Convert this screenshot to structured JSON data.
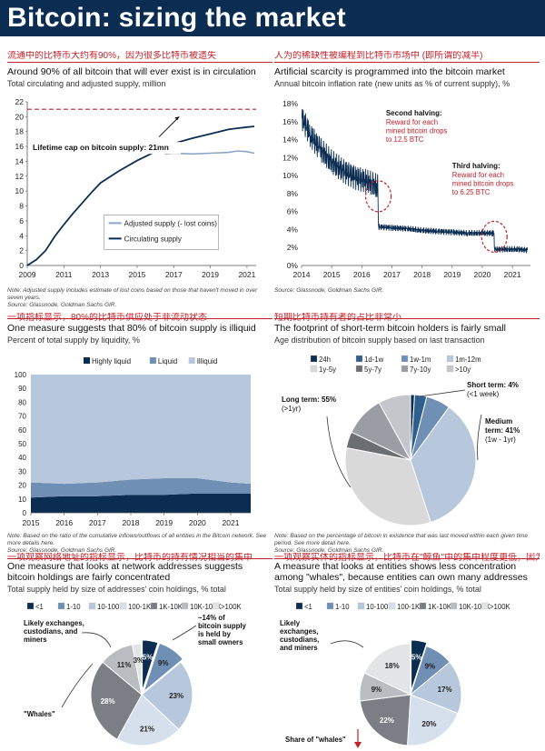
{
  "page": {
    "title": "Bitcoin: sizing the market"
  },
  "colors": {
    "navy": "#0c2d52",
    "red": "#c2222b",
    "mid": "#6f8fb5",
    "light": "#b7c8dc",
    "grey": "#8a8f96"
  },
  "panels": {
    "p1": {
      "cn": "流通中的比特币大约有90%，因为很多比特币被遗失",
      "head": "Around 90% of all bitcoin that will ever exist is in circulation",
      "sub": "Total circulating and adjusted supply, million",
      "annotation": "Lifetime cap on bitcoin supply: 21mn",
      "note": "Note: Adjusted supply includes estimate of lost coins based on those that haven't moved in over seven years.",
      "source": "Source: Glassnode, Goldman Sachs GIR."
    },
    "p2": {
      "cn": "人为的稀缺性被编程到比特币市场中 (即所谓的减半)",
      "head": "Artificial scarcity is programmed into the bitcoin market",
      "sub": "Annual bitcoin inflation rate (new units as % of current supply), %",
      "ann1_title": "Second halving:",
      "ann1_body": [
        "Reward for each",
        "mined bitcoin drops",
        "to 12.5 BTC"
      ],
      "ann2_title": "Third halving:",
      "ann2_body": [
        "Reward for each",
        "mined bitcoin drops",
        "to 6.25 BTC"
      ],
      "source": "Source: Glassnode, Goldman Sachs GIR."
    },
    "p3": {
      "cn": "一项指标显示，80%的比特币供应处于非流动状态",
      "head": "One measure suggests that 80% of bitcoin supply is illiquid",
      "sub": "Percent of total supply by liquidity, %",
      "note": "Note: Based on the ratio of the cumulative inflows/outflows of all entities in the Bitcoin network. See more details here.",
      "source": "Source: Glassnode, Goldman Sachs GIR."
    },
    "p4": {
      "cn": "短期比特币持有者的占比非常小",
      "head": "The footprint of short-term bitcoin holders is fairly small",
      "sub": "Age distribution of bitcoin supply based on last transaction",
      "long_term": "Long term: 55%",
      "long_term2": "(>1yr)",
      "short_term": "Short term: 4%",
      "short_term2": "(<1 week)",
      "medium_term": "Medium",
      "medium_term2": "term: 41%",
      "medium_term3": "(1w - 1yr)",
      "note": "Note: Based on the percentage of bitcoin in existence that was last moved within each given time period. See more detail here.",
      "source": "Source: Glassnode, Goldman Sachs GIR."
    },
    "p5": {
      "cn": "一项观察网络地址的指标显示，比特币的持有情况相当的集中",
      "head": [
        "One measure that looks at network addresses suggests",
        "bitcoin holdings are fairly concentrated"
      ],
      "sub": "Total supply held by size of addresses' coin holdings, % total",
      "ann_exchanges": [
        "Likely exchanges,",
        "custodians, and",
        "miners"
      ],
      "ann_small": [
        "~14% of",
        "bitcoin supply",
        "is held by",
        "small owners"
      ],
      "ann_whales": "\"Whales\""
    },
    "p6": {
      "cn": "一项观察实体的指标显示，比特币在\"鲸鱼\"中的集中程度更低，因为这些实体可能拥有许多个地址",
      "head": [
        "A measure that looks at entities shows less concentration",
        "among \"whales\", because entities can own many addresses"
      ],
      "sub": "Total supply held by size of entities' coin holdings, % total",
      "ann_exchanges": [
        "Likely",
        "exchanges,",
        "custodians,",
        "and miners"
      ],
      "ann_whales": "Share of \"whales\""
    }
  },
  "chart_data": [
    {
      "id": "supply",
      "type": "line",
      "title": "Total circulating and adjusted supply, million",
      "xlim": [
        2009,
        2021.5
      ],
      "ylim": [
        0,
        22
      ],
      "x_ticks": [
        "2009",
        "2011",
        "2013",
        "2015",
        "2017",
        "2019",
        "2021"
      ],
      "y_ticks": [
        "0",
        "2",
        "4",
        "6",
        "8",
        "10",
        "12",
        "14",
        "16",
        "18",
        "20",
        "22"
      ],
      "reference_line": {
        "value": 21,
        "label": "Lifetime cap on bitcoin supply: 21mn"
      },
      "series": [
        {
          "name": "Circulating supply",
          "x": [
            2009,
            2009.5,
            2010,
            2010.5,
            2011,
            2011.5,
            2012,
            2012.5,
            2013,
            2014,
            2015,
            2016,
            2016.5,
            2017,
            2018,
            2019,
            2020,
            2020.5,
            2021,
            2021.4
          ],
          "y": [
            0,
            0.8,
            2.0,
            3.9,
            5.5,
            7.0,
            8.4,
            9.8,
            11.1,
            12.7,
            14.1,
            15.3,
            15.8,
            16.4,
            17.1,
            17.7,
            18.3,
            18.45,
            18.6,
            18.7
          ]
        },
        {
          "name": "Adjusted supply (- lost coins)",
          "x": [
            2016.5,
            2017,
            2018,
            2019,
            2020,
            2020.5,
            2021,
            2021.4
          ],
          "y": [
            15.0,
            15.1,
            15.0,
            15.1,
            15.2,
            15.4,
            15.3,
            15.1
          ]
        }
      ]
    },
    {
      "id": "inflation",
      "type": "line",
      "title": "Annual bitcoin inflation rate (new units as % of current supply), %",
      "xlim": [
        2014,
        2021.6
      ],
      "ylim": [
        0,
        18
      ],
      "x_ticks": [
        "2014",
        "2015",
        "2016",
        "2017",
        "2018",
        "2019",
        "2020",
        "2021"
      ],
      "y_ticks": [
        "0%",
        "2%",
        "4%",
        "6%",
        "8%",
        "10%",
        "12%",
        "14%",
        "16%",
        "18%"
      ],
      "series": [
        {
          "name": "Inflation rate",
          "x": [
            2014.0,
            2014.3,
            2014.6,
            2015.0,
            2015.4,
            2015.8,
            2016.2,
            2016.5,
            2016.55,
            2017.0,
            2017.5,
            2018.0,
            2018.5,
            2019.0,
            2019.5,
            2020.0,
            2020.35,
            2020.4,
            2020.8,
            2021.2,
            2021.5
          ],
          "y": [
            16.5,
            14.5,
            13.0,
            11.5,
            10.5,
            9.8,
            9.3,
            8.8,
            4.3,
            4.2,
            4.1,
            3.9,
            3.8,
            3.7,
            3.6,
            3.6,
            3.6,
            1.8,
            1.8,
            1.8,
            1.7
          ]
        }
      ]
    },
    {
      "id": "liquidity",
      "type": "area",
      "title": "Percent of total supply by liquidity, %",
      "xlim": [
        2015,
        2021.6
      ],
      "ylim": [
        0,
        100
      ],
      "x_ticks": [
        "2015",
        "2016",
        "2017",
        "2018",
        "2019",
        "2020",
        "2021"
      ],
      "y_ticks": [
        "0",
        "10",
        "20",
        "30",
        "40",
        "50",
        "60",
        "70",
        "80",
        "90",
        "100"
      ],
      "legend_placement": "top",
      "series": [
        {
          "name": "Highly liquid",
          "x": [
            2015,
            2016,
            2017,
            2018,
            2019,
            2020,
            2021,
            2021.6
          ],
          "y": [
            11,
            12,
            12,
            13,
            13,
            14,
            14,
            14
          ]
        },
        {
          "name": "Liquid",
          "x": [
            2015,
            2016,
            2017,
            2018,
            2019,
            2020,
            2021,
            2021.6
          ],
          "y": [
            11,
            9,
            10,
            11,
            12,
            11,
            8,
            7
          ]
        },
        {
          "name": "Illiquid",
          "x": [
            2015,
            2016,
            2017,
            2018,
            2019,
            2020,
            2021,
            2021.6
          ],
          "y": [
            78,
            79,
            78,
            76,
            75,
            75,
            78,
            79
          ]
        }
      ]
    },
    {
      "id": "age",
      "type": "pie",
      "title": "Age distribution of bitcoin supply based on last transaction",
      "series": [
        {
          "name": "24h",
          "value": 1,
          "color": "#0c2d52"
        },
        {
          "name": "1d-1w",
          "value": 3,
          "color": "#2f5f8f"
        },
        {
          "name": "1w-1m",
          "value": 6,
          "color": "#6f8fb5"
        },
        {
          "name": "1m-12m",
          "value": 35,
          "color": "#b7c8dc"
        },
        {
          "name": "1y-5y",
          "value": 33,
          "color": "#d9d9d9"
        },
        {
          "name": "5y-7y",
          "value": 4,
          "color": "#6b6e73"
        },
        {
          "name": "7y-10y",
          "value": 10,
          "color": "#9a9ea4"
        },
        {
          "name": ">10y",
          "value": 8,
          "color": "#c3c6ca"
        }
      ]
    },
    {
      "id": "addresses",
      "type": "pie",
      "title": "Total supply held by size of addresses' coin holdings, % total",
      "series": [
        {
          "name": "<1",
          "value": 5,
          "color": "#0c2d52"
        },
        {
          "name": "1-10",
          "value": 9,
          "color": "#6f8fb5"
        },
        {
          "name": "10-100",
          "value": 23,
          "color": "#b7c8dc"
        },
        {
          "name": "100-1K",
          "value": 21,
          "color": "#d6e0ec"
        },
        {
          "name": "1K-10K",
          "value": 28,
          "color": "#7b7f85"
        },
        {
          "name": "10K-100K",
          "value": 11,
          "color": "#b9bcc0"
        },
        {
          "name": ">100K",
          "value": 3,
          "color": "#e3e4e6"
        }
      ]
    },
    {
      "id": "entities",
      "type": "pie",
      "title": "Total supply held by size of entities' coin holdings, % total",
      "series": [
        {
          "name": "<1",
          "value": 5,
          "color": "#0c2d52"
        },
        {
          "name": "1-10",
          "value": 9,
          "color": "#6f8fb5"
        },
        {
          "name": "10-100",
          "value": 17,
          "color": "#b7c8dc"
        },
        {
          "name": "100-1K",
          "value": 20,
          "color": "#d6e0ec"
        },
        {
          "name": "1K-10K",
          "value": 22,
          "color": "#7b7f85"
        },
        {
          "name": "10K-100K",
          "value": 9,
          "color": "#b9bcc0"
        },
        {
          "name": ">100K",
          "value": 18,
          "color": "#e3e4e6"
        }
      ]
    }
  ]
}
